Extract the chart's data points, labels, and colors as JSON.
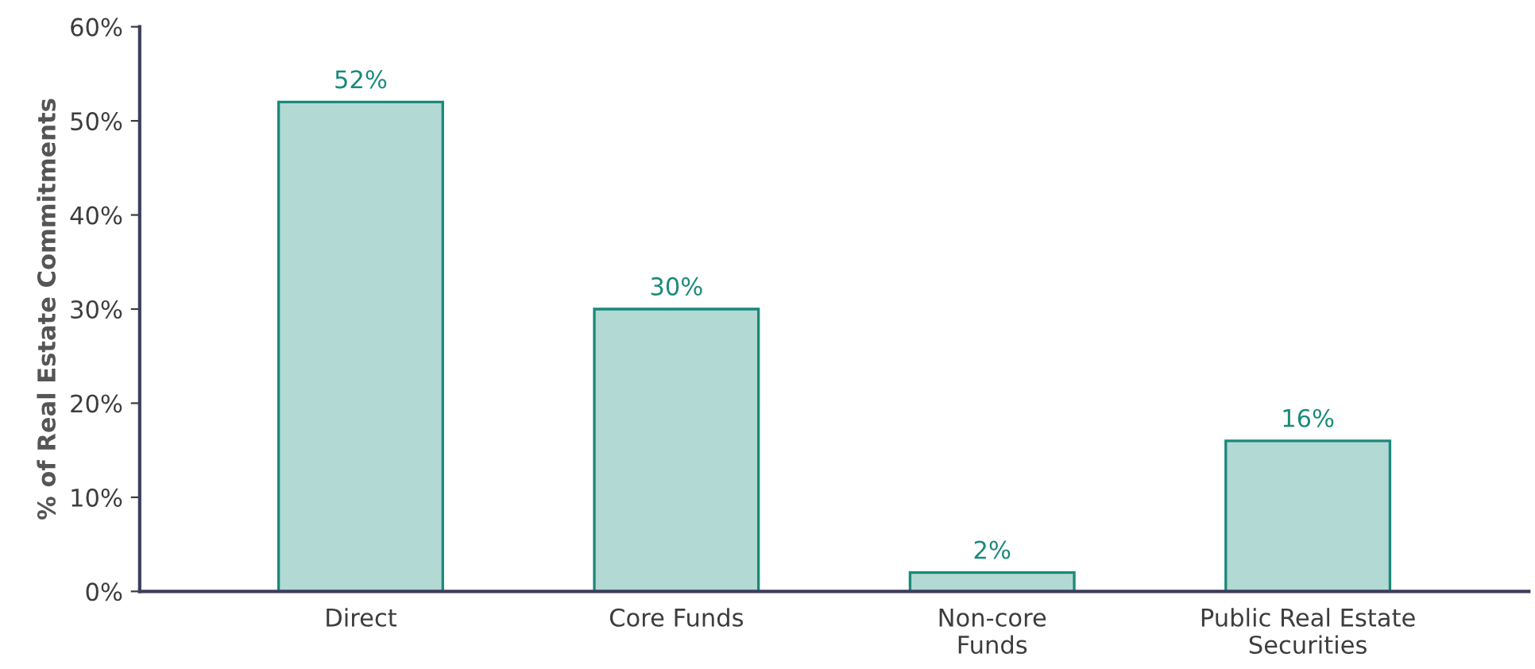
{
  "chart_data": {
    "type": "bar",
    "ylabel": "% of Real Estate Commitments",
    "categories": [
      "Direct",
      "Core Funds",
      "Non-core\nFunds",
      "Public Real Estate\nSecurities"
    ],
    "values": [
      52,
      30,
      2,
      16
    ],
    "color": "#b3d9d5",
    "value_labels": [
      "52%",
      "30%",
      "2%",
      "16%"
    ],
    "ylim": [
      0,
      60
    ],
    "yticks": [
      {
        "value": 0,
        "label": "0%"
      },
      {
        "value": 10,
        "label": "10%"
      },
      {
        "value": 20,
        "label": "20%"
      },
      {
        "value": 30,
        "label": "30%"
      },
      {
        "value": 40,
        "label": "40%"
      },
      {
        "value": 50,
        "label": "50%"
      },
      {
        "value": 60,
        "label": "60%"
      }
    ],
    "grid": false,
    "legend": false
  }
}
